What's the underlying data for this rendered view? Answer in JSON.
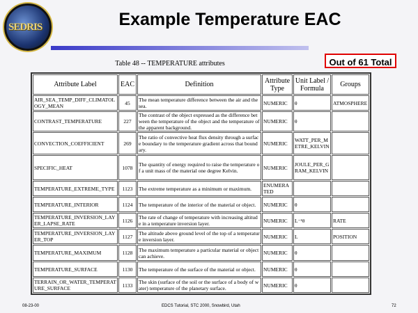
{
  "logo_text": "SEDRIS",
  "title": "Example Temperature EAC",
  "total_badge": "Out of 61 Total",
  "table": {
    "caption": "Table 48 -- TEMPERATURE attributes",
    "headers": [
      "Attribute Label",
      "EAC",
      "Definition",
      "Attribute Type",
      "Unit Label / Formula",
      "Groups"
    ],
    "rows": [
      [
        "AIR_SEA_TEMP_DIFF_CLIMATOLOGY_MEAN",
        "45",
        "The mean temperature difference between the air and the sea.",
        "NUMERIC",
        "θ",
        "ATMOSPHERE"
      ],
      [
        "CONTRAST_TEMPERATURE",
        "227",
        "The contrast of the object expressed as the difference between the temperature of the object and the temperature of the apparent background.",
        "NUMERIC",
        "θ",
        ""
      ],
      [
        "CONVECTION_COEFFICIENT",
        "269",
        "The ratio of convective heat flux density through a surface boundary to the temperature gradient across that boundary.",
        "NUMERIC",
        "WATT_PER_METRE_KELVIN",
        ""
      ],
      [
        "SPECIFIC_HEAT",
        "1078",
        "The quantity of energy required to raise the temperature of a unit mass of the material one degree Kelvin.",
        "NUMERIC",
        "JOULE_PER_GRAM_KELVIN",
        ""
      ],
      [
        "TEMPERATURE_EXTREME_TYPE",
        "1123",
        "The extreme temperature as a minimum or maximum.",
        "ENUMERATED",
        "",
        ""
      ],
      [
        "TEMPERATURE_INTERIOR",
        "1124",
        "The temperature of the interior of the material or object.",
        "NUMERIC",
        "θ",
        ""
      ],
      [
        "TEMPERATURE_INVERSION_LAYER_LAPSE_RATE",
        "1126",
        "The rate of change of temperature with increasing altitude in a temperature inversion layer.",
        "NUMERIC",
        "L⁻¹θ",
        "RATE"
      ],
      [
        "TEMPERATURE_INVERSION_LAYER_TOP",
        "1127",
        "The altitude above ground level of the top of a temperature inversion layer.",
        "NUMERIC",
        "L",
        "POSITION"
      ],
      [
        "TEMPERATURE_MAXIMUM",
        "1128",
        "The maximum temperature a particular material or object can achieve.",
        "NUMERIC",
        "θ",
        ""
      ],
      [
        "TEMPERATURE_SURFACE",
        "1130",
        "The temperature of the surface of the material or object.",
        "NUMERIC",
        "θ",
        ""
      ],
      [
        "TERRAIN_OR_WATER_TEMPERATURE_SURFACE",
        "1133",
        "The skin (surface of the soil or the surface of a body of water) temperature of the planetary surface.",
        "NUMERIC",
        "θ",
        ""
      ]
    ]
  },
  "footer": {
    "date": "08-23-00",
    "center": "EDCS Tutorial, STC 2000, Snowbird, Utah",
    "page": "72"
  }
}
